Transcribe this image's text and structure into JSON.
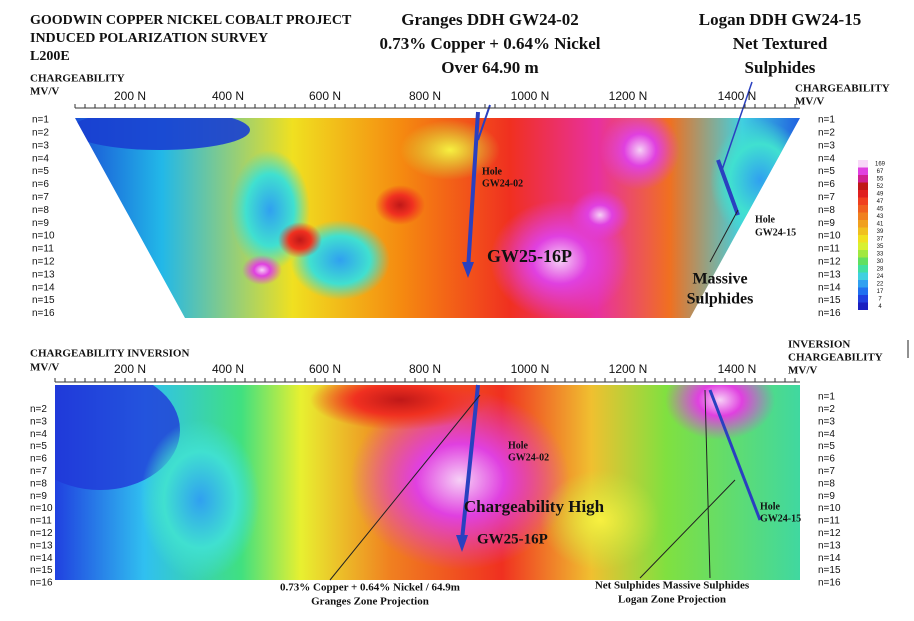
{
  "header": {
    "lines": [
      "GOODWIN COPPER NICKEL COBALT PROJECT",
      "INDUCED POLARIZATION SURVEY",
      "L200E"
    ]
  },
  "callouts": {
    "granges": [
      "Granges DDH GW24-02",
      "0.73% Copper + 0.64% Nickel",
      "Over 64.90 m"
    ],
    "logan": [
      "Logan DDH GW24-15",
      "Net Textured",
      "Sulphides"
    ]
  },
  "top_panel": {
    "left_axis_label": [
      "CHARGEABILITY",
      "MV/V"
    ],
    "right_axis_label": [
      "CHARGEABILITY",
      "MV/V"
    ],
    "stations": [
      "200 N",
      "400 N",
      "600 N",
      "800 N",
      "1000 N",
      "1200 N",
      "1400 N"
    ],
    "levels": [
      "n=1",
      "n=2",
      "n=3",
      "n=4",
      "n=5",
      "n=6",
      "n=7",
      "n=8",
      "n=9",
      "n=10",
      "n=11",
      "n=12",
      "n=13",
      "n=14",
      "n=15",
      "n=16"
    ],
    "hole_a": [
      "Hole",
      "GW24-02"
    ],
    "target": "GW25-16P",
    "hole_b": [
      "Hole",
      "GW24-15"
    ],
    "massive": [
      "Massive",
      "Sulphides"
    ],
    "scale": [
      169,
      67,
      55,
      52,
      49,
      47,
      45,
      43,
      41,
      39,
      37,
      35,
      33,
      30,
      28,
      24,
      22,
      17,
      7,
      4
    ]
  },
  "bottom_panel": {
    "left_axis_label": [
      "CHARGEABILITY INVERSION",
      "MV/V"
    ],
    "right_axis_label": [
      "INVERSION",
      "CHARGEABILITY",
      "MV/V"
    ],
    "stations": [
      "200 N",
      "400 N",
      "600 N",
      "800 N",
      "1000 N",
      "1200 N",
      "1400 N"
    ],
    "levels_left": [
      "n=2",
      "n=3",
      "n=4",
      "n=5",
      "n=6",
      "n=7",
      "n=8",
      "n=9",
      "n=10",
      "n=11",
      "n=12",
      "n=13",
      "n=14",
      "n=15",
      "n=16"
    ],
    "levels_right": [
      "n=1",
      "n=2",
      "n=3",
      "n=4",
      "n=5",
      "n=6",
      "n=7",
      "n=8",
      "n=9",
      "n=10",
      "n=11",
      "n=12",
      "n=13",
      "n=14",
      "n=15",
      "n=16"
    ],
    "hole_a": [
      "Hole",
      "GW24-02"
    ],
    "high": "Chargeability High",
    "target": "GW25-16P",
    "hole_b": [
      "Hole",
      "GW24-15"
    ],
    "footer_left": [
      "0.73% Copper + 0.64% Nickel / 64.9m",
      "Granges Zone Projection"
    ],
    "footer_right": [
      "Net Sulphides  Massive Sulphides",
      "Logan Zone Projection"
    ]
  }
}
